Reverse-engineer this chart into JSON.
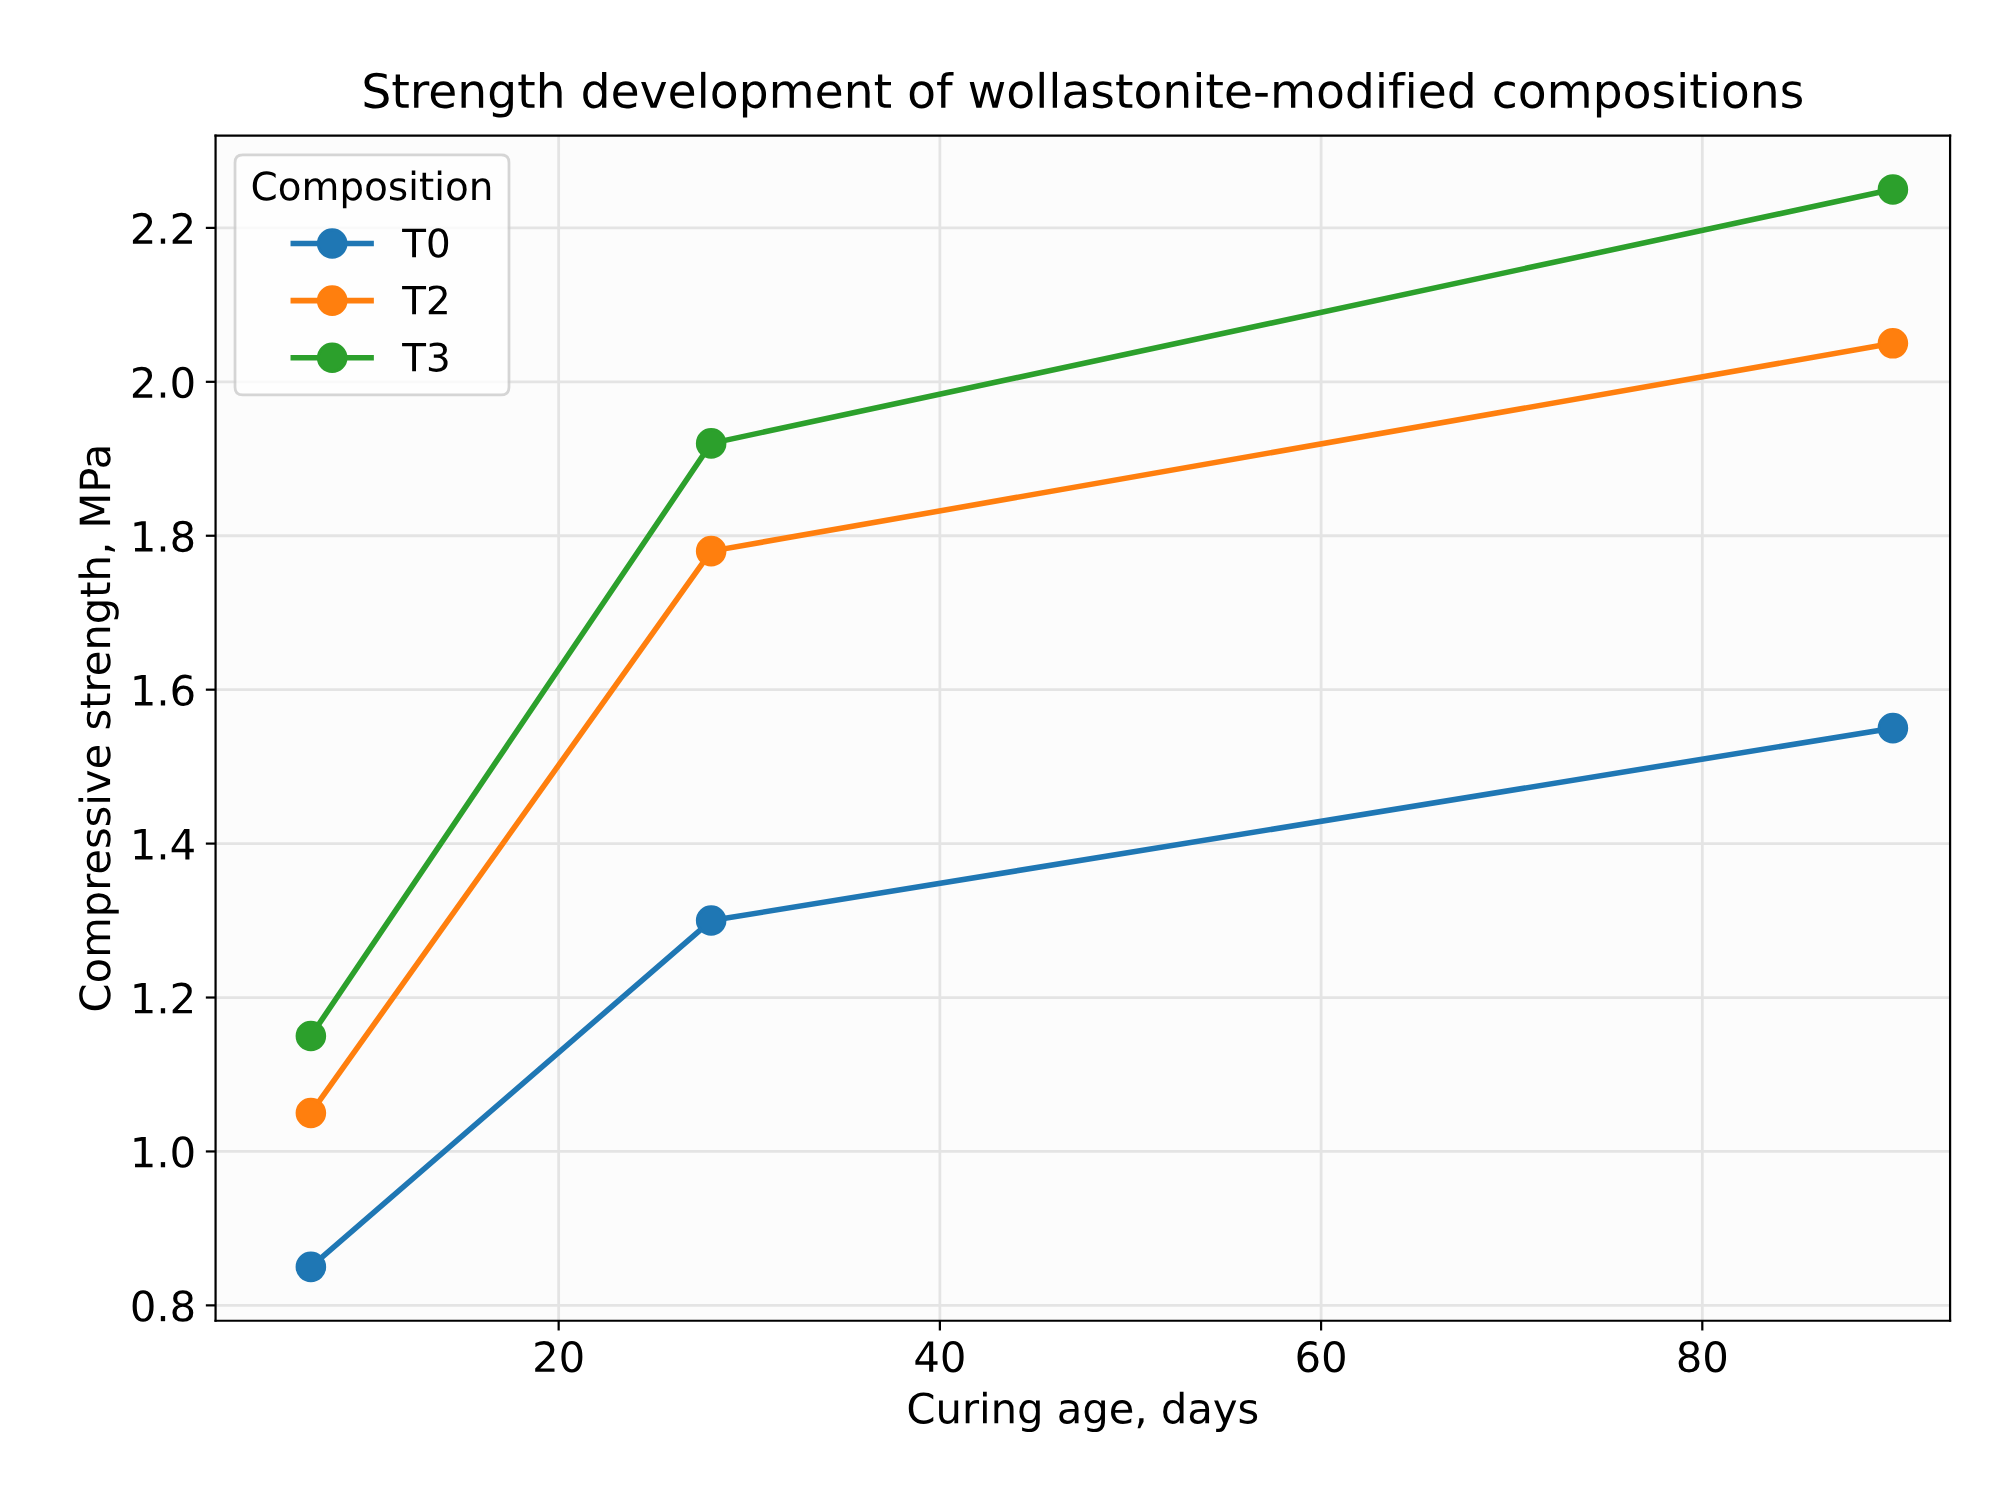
{
  "chart_data": {
    "type": "line",
    "title": "Strength development of wollastonite-modified compositions",
    "xlabel": "Curing age, days",
    "ylabel": "Compressive strength, MPa",
    "legend_title": "Composition",
    "legend": "top left",
    "grid": true,
    "marker": "circle",
    "line_style": "solid",
    "x": [
      7,
      28,
      90
    ],
    "series": [
      {
        "name": "T0",
        "color": "#1f77b4",
        "values": [
          0.85,
          1.3,
          1.55
        ]
      },
      {
        "name": "T2",
        "color": "#ff7f0e",
        "values": [
          1.05,
          1.78,
          2.05
        ]
      },
      {
        "name": "T3",
        "color": "#2ca02c",
        "values": [
          1.15,
          1.92,
          2.25
        ]
      }
    ],
    "xlim": [
      2,
      93
    ],
    "xticks": [
      20,
      40,
      60,
      80
    ],
    "ylim": [
      0.78,
      2.32
    ],
    "yticks": [
      {
        "value": 0.8,
        "label": "0.8"
      },
      {
        "value": 1.0,
        "label": "1.0"
      },
      {
        "value": 1.2,
        "label": "1.2"
      },
      {
        "value": 1.4,
        "label": "1.4"
      },
      {
        "value": 1.6,
        "label": "1.6"
      },
      {
        "value": 1.8,
        "label": "1.8"
      },
      {
        "value": 2.0,
        "label": "2.0"
      },
      {
        "value": 2.2,
        "label": "2.2"
      }
    ]
  }
}
